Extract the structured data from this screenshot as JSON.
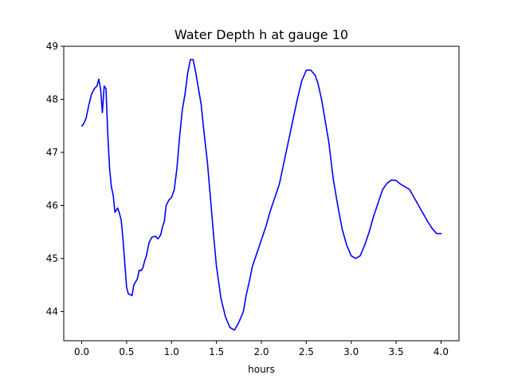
{
  "chart_data": {
    "type": "line",
    "title": "Water Depth h at gauge 10",
    "xlabel": "hours",
    "ylabel": "",
    "xlim": [
      -0.2,
      4.2
    ],
    "ylim": [
      43.45,
      49.0
    ],
    "xticks": [
      0.0,
      0.5,
      1.0,
      1.5,
      2.0,
      2.5,
      3.0,
      3.5,
      4.0
    ],
    "xtick_labels": [
      "0.0",
      "0.5",
      "1.0",
      "1.5",
      "2.0",
      "2.5",
      "3.0",
      "3.5",
      "4.0"
    ],
    "yticks": [
      44,
      45,
      46,
      47,
      48,
      49
    ],
    "ytick_labels": [
      "44",
      "45",
      "46",
      "47",
      "48",
      "49"
    ],
    "grid": false,
    "series": [
      {
        "color": "#0000ff",
        "x": [
          0.0,
          0.02,
          0.05,
          0.08,
          0.11,
          0.14,
          0.17,
          0.19,
          0.21,
          0.23,
          0.25,
          0.27,
          0.29,
          0.31,
          0.33,
          0.35,
          0.37,
          0.4,
          0.42,
          0.44,
          0.46,
          0.48,
          0.5,
          0.52,
          0.54,
          0.56,
          0.58,
          0.62,
          0.64,
          0.66,
          0.68,
          0.7,
          0.72,
          0.75,
          0.78,
          0.82,
          0.85,
          0.88,
          0.9,
          0.92,
          0.94,
          0.97,
          1.0,
          1.03,
          1.06,
          1.09,
          1.12,
          1.15,
          1.18,
          1.21,
          1.24,
          1.27,
          1.3,
          1.33,
          1.36,
          1.4,
          1.43,
          1.47,
          1.5,
          1.55,
          1.6,
          1.65,
          1.7,
          1.75,
          1.8,
          1.83,
          1.87,
          1.9,
          1.95,
          2.0,
          2.05,
          2.1,
          2.15,
          2.2,
          2.25,
          2.3,
          2.35,
          2.4,
          2.45,
          2.5,
          2.55,
          2.6,
          2.63,
          2.67,
          2.7,
          2.75,
          2.8,
          2.85,
          2.9,
          2.95,
          3.0,
          3.05,
          3.1,
          3.15,
          3.2,
          3.25,
          3.3,
          3.35,
          3.4,
          3.45,
          3.5,
          3.55,
          3.6,
          3.65,
          3.7,
          3.75,
          3.8,
          3.85,
          3.9,
          3.95,
          4.0
        ],
        "y": [
          47.5,
          47.53,
          47.65,
          47.9,
          48.1,
          48.2,
          48.25,
          48.38,
          48.2,
          47.75,
          48.25,
          48.2,
          47.35,
          46.7,
          46.35,
          46.2,
          45.87,
          45.95,
          45.85,
          45.72,
          45.35,
          44.9,
          44.45,
          44.33,
          44.32,
          44.3,
          44.5,
          44.62,
          44.78,
          44.77,
          44.82,
          44.95,
          45.05,
          45.3,
          45.4,
          45.42,
          45.37,
          45.45,
          45.6,
          45.7,
          46.0,
          46.1,
          46.15,
          46.3,
          46.7,
          47.3,
          47.8,
          48.1,
          48.5,
          48.75,
          48.75,
          48.5,
          48.2,
          47.9,
          47.4,
          46.8,
          46.2,
          45.4,
          44.85,
          44.25,
          43.9,
          43.7,
          43.65,
          43.8,
          44.0,
          44.3,
          44.6,
          44.85,
          45.1,
          45.35,
          45.6,
          45.9,
          46.15,
          46.4,
          46.8,
          47.2,
          47.6,
          48.0,
          48.35,
          48.55,
          48.55,
          48.45,
          48.3,
          48.0,
          47.7,
          47.2,
          46.5,
          46.0,
          45.55,
          45.25,
          45.05,
          45.0,
          45.05,
          45.25,
          45.5,
          45.8,
          46.05,
          46.3,
          46.42,
          46.48,
          46.47,
          46.4,
          46.35,
          46.3,
          46.15,
          46.0,
          45.85,
          45.7,
          45.57,
          45.47,
          45.47
        ]
      }
    ]
  }
}
